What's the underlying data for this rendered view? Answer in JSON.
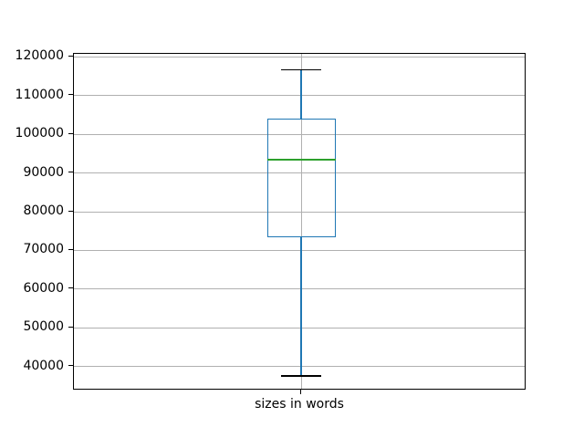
{
  "chart_data": {
    "type": "boxplot",
    "title": "",
    "xlabel": "",
    "ylabel": "",
    "categories": [
      "sizes in words"
    ],
    "series": [
      {
        "name": "sizes in words",
        "whisker_low": 37600,
        "q1": 73400,
        "median": 93500,
        "q3": 104000,
        "whisker_high": 116700,
        "outliers": []
      }
    ],
    "ylim": [
      33800,
      120800
    ],
    "yticks": [
      40000,
      50000,
      60000,
      70000,
      80000,
      90000,
      100000,
      110000,
      120000
    ],
    "grid": "both",
    "legend": "none",
    "colors": {
      "box": "#1f77b4",
      "whisker": "#1f77b4",
      "cap": "#000000",
      "median": "#2ca02c",
      "grid": "#b0b0b0",
      "spine": "#000000",
      "background": "#ffffff"
    }
  }
}
